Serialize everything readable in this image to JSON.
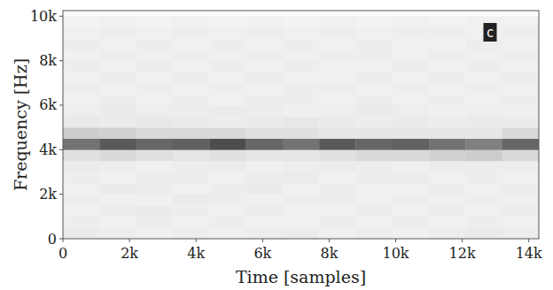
{
  "chart_data": {
    "type": "heatmap",
    "x_label": "Time [samples]",
    "y_label": "Frequency [Hz]",
    "annotation": "c",
    "xlim": [
      0,
      14300
    ],
    "ylim": [
      0,
      10250
    ],
    "xticks": [
      {
        "value": 0,
        "label": "0"
      },
      {
        "value": 2000,
        "label": "2k"
      },
      {
        "value": 4000,
        "label": "4k"
      },
      {
        "value": 6000,
        "label": "6k"
      },
      {
        "value": 8000,
        "label": "8k"
      },
      {
        "value": 10000,
        "label": "10k"
      },
      {
        "value": 12000,
        "label": "12k"
      },
      {
        "value": 14000,
        "label": "14k"
      }
    ],
    "yticks": [
      {
        "value": 0,
        "label": "0"
      },
      {
        "value": 2000,
        "label": "2k"
      },
      {
        "value": 4000,
        "label": "4k"
      },
      {
        "value": 6000,
        "label": "6k"
      },
      {
        "value": 8000,
        "label": "8k"
      },
      {
        "value": 10000,
        "label": "10k"
      }
    ],
    "xbins": [
      0,
      1100,
      2200,
      3300,
      4400,
      5500,
      6600,
      7700,
      8800,
      9900,
      11000,
      12100,
      13200,
      14300
    ],
    "ybins": [
      0,
      500,
      1000,
      1500,
      2000,
      2500,
      3000,
      3500,
      4000,
      4500,
      5000,
      5500,
      6000,
      6500,
      7000,
      7500,
      8000,
      8500,
      9000,
      9500,
      10000
    ],
    "zlim": [
      0,
      1
    ],
    "cells": [
      [
        0.08,
        0.07,
        0.06,
        0.07,
        0.06,
        0.07,
        0.08,
        0.06,
        0.07,
        0.06,
        0.07,
        0.08,
        0.07
      ],
      [
        0.07,
        0.06,
        0.07,
        0.06,
        0.07,
        0.06,
        0.06,
        0.07,
        0.06,
        0.07,
        0.06,
        0.07,
        0.06
      ],
      [
        0.06,
        0.07,
        0.08,
        0.07,
        0.06,
        0.07,
        0.06,
        0.06,
        0.07,
        0.06,
        0.07,
        0.06,
        0.07
      ],
      [
        0.07,
        0.06,
        0.06,
        0.08,
        0.07,
        0.06,
        0.07,
        0.07,
        0.06,
        0.07,
        0.06,
        0.07,
        0.06
      ],
      [
        0.06,
        0.08,
        0.07,
        0.06,
        0.07,
        0.08,
        0.06,
        0.07,
        0.06,
        0.06,
        0.07,
        0.06,
        0.07
      ],
      [
        0.07,
        0.06,
        0.07,
        0.07,
        0.06,
        0.07,
        0.08,
        0.06,
        0.07,
        0.08,
        0.06,
        0.07,
        0.06
      ],
      [
        0.08,
        0.07,
        0.06,
        0.07,
        0.08,
        0.06,
        0.07,
        0.08,
        0.07,
        0.06,
        0.08,
        0.07,
        0.07
      ],
      [
        0.12,
        0.15,
        0.12,
        0.1,
        0.12,
        0.1,
        0.1,
        0.12,
        0.15,
        0.15,
        0.18,
        0.2,
        0.15
      ],
      [
        0.55,
        0.65,
        0.6,
        0.62,
        0.7,
        0.6,
        0.55,
        0.65,
        0.6,
        0.62,
        0.55,
        0.5,
        0.6
      ],
      [
        0.2,
        0.18,
        0.15,
        0.15,
        0.15,
        0.12,
        0.12,
        0.1,
        0.1,
        0.1,
        0.1,
        0.1,
        0.15
      ],
      [
        0.09,
        0.08,
        0.09,
        0.08,
        0.07,
        0.08,
        0.09,
        0.08,
        0.07,
        0.08,
        0.07,
        0.08,
        0.08
      ],
      [
        0.07,
        0.08,
        0.07,
        0.07,
        0.08,
        0.07,
        0.06,
        0.07,
        0.08,
        0.07,
        0.06,
        0.07,
        0.06
      ],
      [
        0.06,
        0.07,
        0.06,
        0.07,
        0.06,
        0.07,
        0.07,
        0.06,
        0.07,
        0.06,
        0.07,
        0.06,
        0.07
      ],
      [
        0.07,
        0.06,
        0.07,
        0.06,
        0.07,
        0.06,
        0.07,
        0.07,
        0.06,
        0.07,
        0.06,
        0.07,
        0.06
      ],
      [
        0.06,
        0.07,
        0.06,
        0.07,
        0.06,
        0.07,
        0.06,
        0.06,
        0.07,
        0.06,
        0.07,
        0.06,
        0.07
      ],
      [
        0.07,
        0.06,
        0.07,
        0.06,
        0.07,
        0.06,
        0.07,
        0.06,
        0.06,
        0.07,
        0.06,
        0.07,
        0.06
      ],
      [
        0.06,
        0.07,
        0.06,
        0.07,
        0.06,
        0.07,
        0.06,
        0.07,
        0.07,
        0.06,
        0.07,
        0.06,
        0.07
      ],
      [
        0.07,
        0.06,
        0.07,
        0.06,
        0.07,
        0.06,
        0.07,
        0.06,
        0.07,
        0.06,
        0.06,
        0.07,
        0.06
      ],
      [
        0.06,
        0.07,
        0.06,
        0.07,
        0.06,
        0.07,
        0.06,
        0.07,
        0.06,
        0.07,
        0.07,
        0.06,
        0.07
      ],
      [
        0.05,
        0.06,
        0.05,
        0.06,
        0.05,
        0.06,
        0.05,
        0.06,
        0.05,
        0.06,
        0.05,
        0.06,
        0.05
      ]
    ]
  }
}
